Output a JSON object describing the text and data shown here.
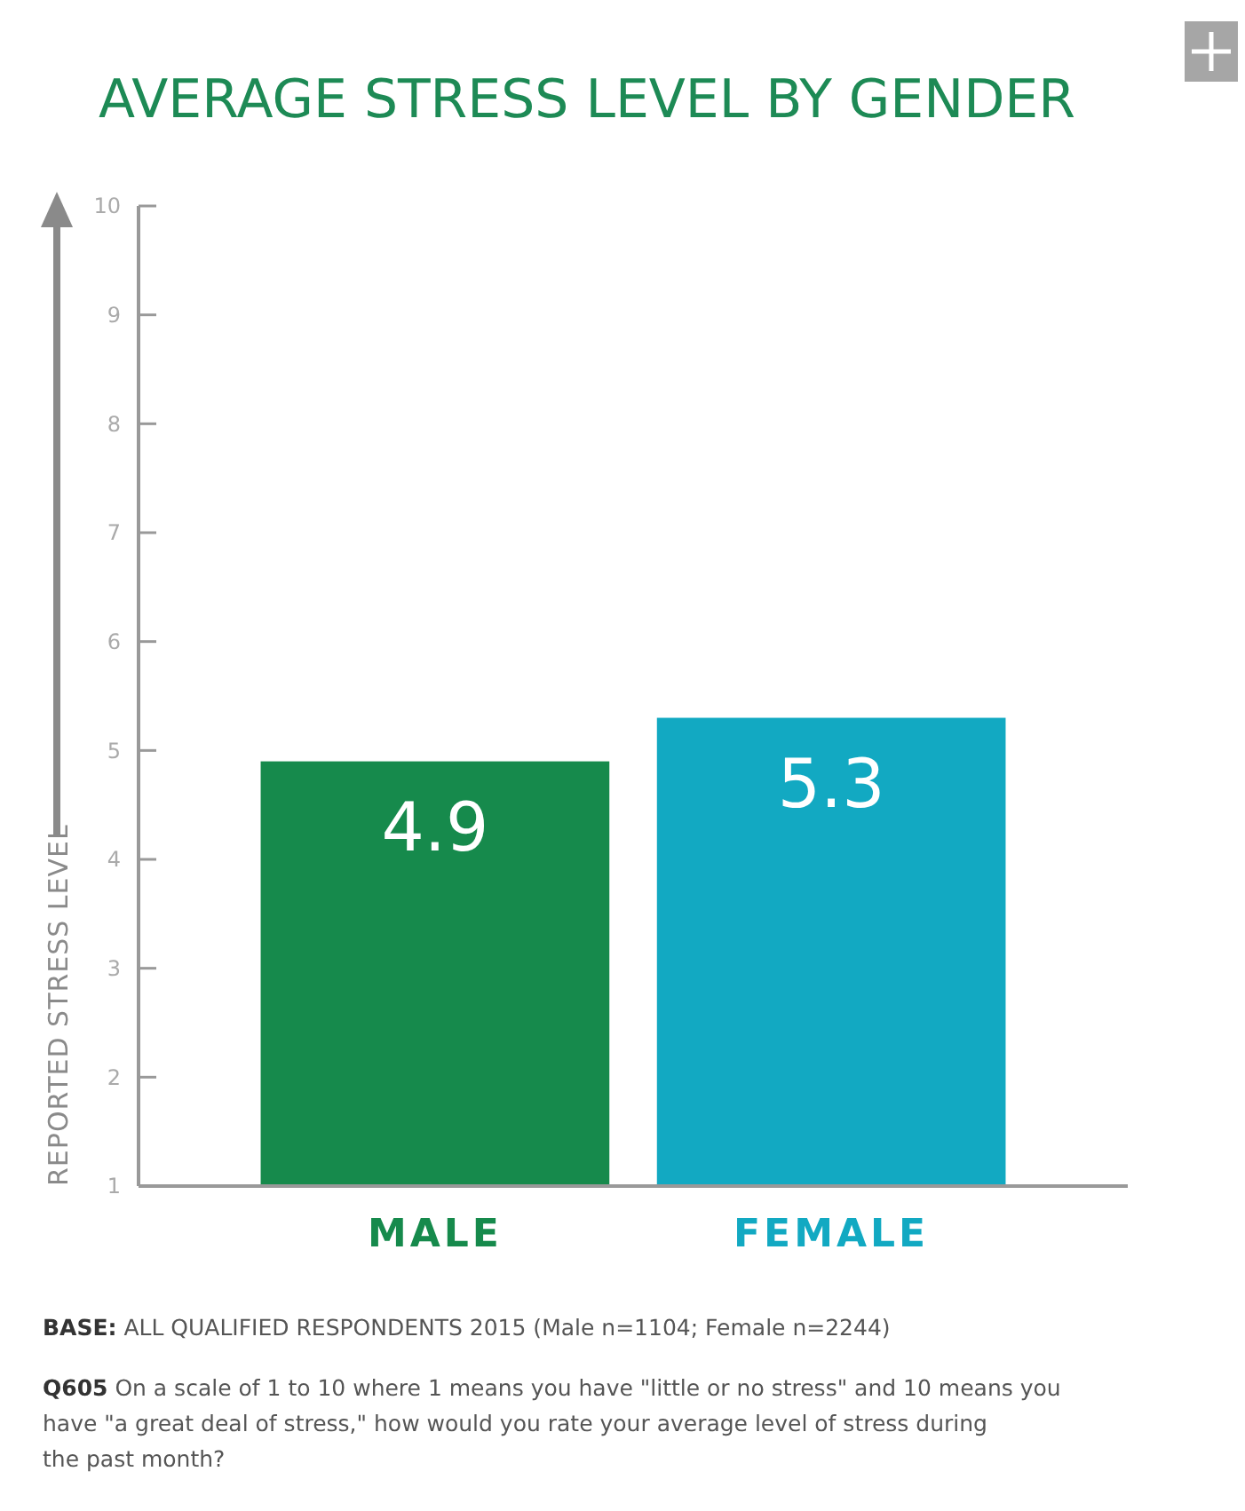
{
  "chart_data": {
    "type": "bar",
    "title": "AVERAGE STRESS LEVEL BY GENDER",
    "ylabel": "REPORTED STRESS LEVEL",
    "categories": [
      "MALE",
      "FEMALE"
    ],
    "values": [
      4.9,
      5.3
    ],
    "colors": [
      "#168a4c",
      "#12a9c2"
    ],
    "ylim": [
      1,
      10
    ],
    "yticks": [
      1,
      2,
      3,
      4,
      5,
      6,
      7,
      8,
      9,
      10
    ],
    "data_labels": true,
    "annotations": [
      "BASE: ALL QUALIFIED RESPONDENTS 2015 (Male n=1104; Female n=2244)",
      "Q605 On a scale of 1 to 10 where 1 means you have \"little or no stress\" and 10 means you have \"a great deal of stress,\" how would you rate your average level of stress during the past month?"
    ]
  }
}
